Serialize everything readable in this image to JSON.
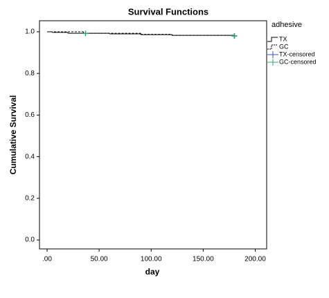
{
  "chart_data": {
    "type": "step",
    "title": "Survival Functions",
    "x_label": "day",
    "y_label": "Cumulative Survival",
    "legend_title": "adhesive",
    "legend_position": "right",
    "xlim": [
      -7.3,
      211
    ],
    "ylim": [
      -0.043,
      1.053
    ],
    "xticks": [
      {
        "value": 0,
        "label": ".00"
      },
      {
        "value": 50,
        "label": "50.00"
      },
      {
        "value": 100,
        "label": "100.00"
      },
      {
        "value": 150,
        "label": "150.00"
      },
      {
        "value": 200,
        "label": "200.00"
      }
    ],
    "yticks": [
      {
        "value": 0,
        "label": "0.0"
      },
      {
        "value": 0.2,
        "label": "0.2"
      },
      {
        "value": 0.4,
        "label": "0.4"
      },
      {
        "value": 0.6,
        "label": "0.6"
      },
      {
        "value": 0.8,
        "label": "0.8"
      },
      {
        "value": 1,
        "label": "1.0"
      }
    ],
    "series": [
      {
        "name": "TX",
        "color": "#000000",
        "linestyle": "solid",
        "x": [
          0,
          5,
          20,
          60,
          90,
          120,
          180
        ],
        "values": [
          1.0,
          0.997,
          0.993,
          0.99,
          0.986,
          0.983,
          0.98
        ]
      },
      {
        "name": "GC",
        "color": "#000000",
        "linestyle": "dashed",
        "x": [
          0,
          35,
          90,
          120,
          180
        ],
        "values": [
          1.0,
          0.993,
          0.988,
          0.983,
          0.98
        ]
      },
      {
        "name": "TX-censored",
        "color": "#3b4fb5",
        "marker": "plus",
        "x": [
          180
        ],
        "values": [
          0.98
        ]
      },
      {
        "name": "GC-censored",
        "color": "#2fa870",
        "marker": "plus",
        "x": [
          37,
          180
        ],
        "values": [
          0.992,
          0.98
        ]
      }
    ]
  }
}
